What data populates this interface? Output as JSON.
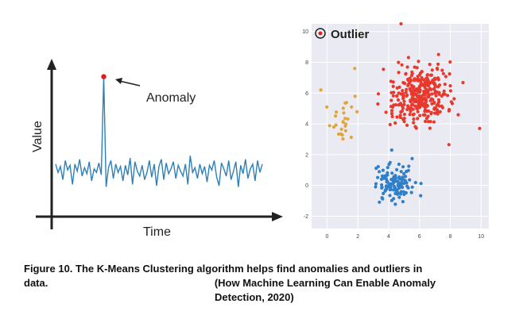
{
  "chart_data": [
    {
      "type": "line",
      "xlabel": "Time",
      "ylabel": "Value",
      "annotation": "Anomaly",
      "series": [
        {
          "values": [
            2.2,
            1.5,
            2.0,
            0.9,
            2.5,
            1.7,
            2.1,
            0.5,
            2.2,
            1.6,
            2.6,
            1.2,
            1.9,
            1.4,
            2.4,
            0.8,
            1.8,
            1.5,
            2.3,
            1.3,
            9.5,
            0.3,
            1.9,
            2.5,
            1.0,
            2.2,
            1.5,
            2.0,
            0.8,
            2.1,
            1.3,
            2.7,
            0.5,
            2.4,
            1.6,
            1.2,
            2.1,
            0.9,
            1.5,
            2.5,
            1.1,
            2.2,
            0.4,
            2.0,
            2.6,
            0.9,
            2.3,
            1.4,
            1.8,
            2.4,
            1.0,
            2.1,
            1.6,
            1.2,
            2.2,
            0.5,
            2.9,
            1.5,
            1.9,
            1.0,
            2.2,
            1.4,
            2.0,
            0.7,
            2.1,
            1.7,
            2.5,
            1.1,
            0.4,
            2.3,
            1.8,
            1.2,
            2.5,
            0.9,
            1.6,
            2.4,
            0.3,
            2.1,
            1.4,
            2.6,
            1.0,
            1.8,
            2.2,
            0.8,
            2.5,
            1.5,
            2.2
          ]
        }
      ],
      "highlight_index": 20
    },
    {
      "type": "scatter",
      "title": "Outlier",
      "xlim": [
        -1,
        10.5
      ],
      "ylim": [
        -2.8,
        10.5
      ],
      "xticks": [
        "0",
        "2",
        "4",
        "6",
        "8",
        "10"
      ],
      "yticks": [
        "-2",
        "0",
        "2",
        "4",
        "6",
        "8",
        "10"
      ],
      "grid": true,
      "legend_position": "top-left",
      "colors": {
        "red": "#e8392c",
        "blue": "#2f7fc9",
        "orange": "#e0a63a",
        "legend_marker": "#d9262b"
      }
    }
  ],
  "caption": {
    "line1": "Figure 10. The K-Means Clustering algorithm helps find anomalies and outliers in",
    "line2": "data.                                                          (How Machine Learning Can Enable Anomaly",
    "line3": "Detection, 2020)"
  }
}
